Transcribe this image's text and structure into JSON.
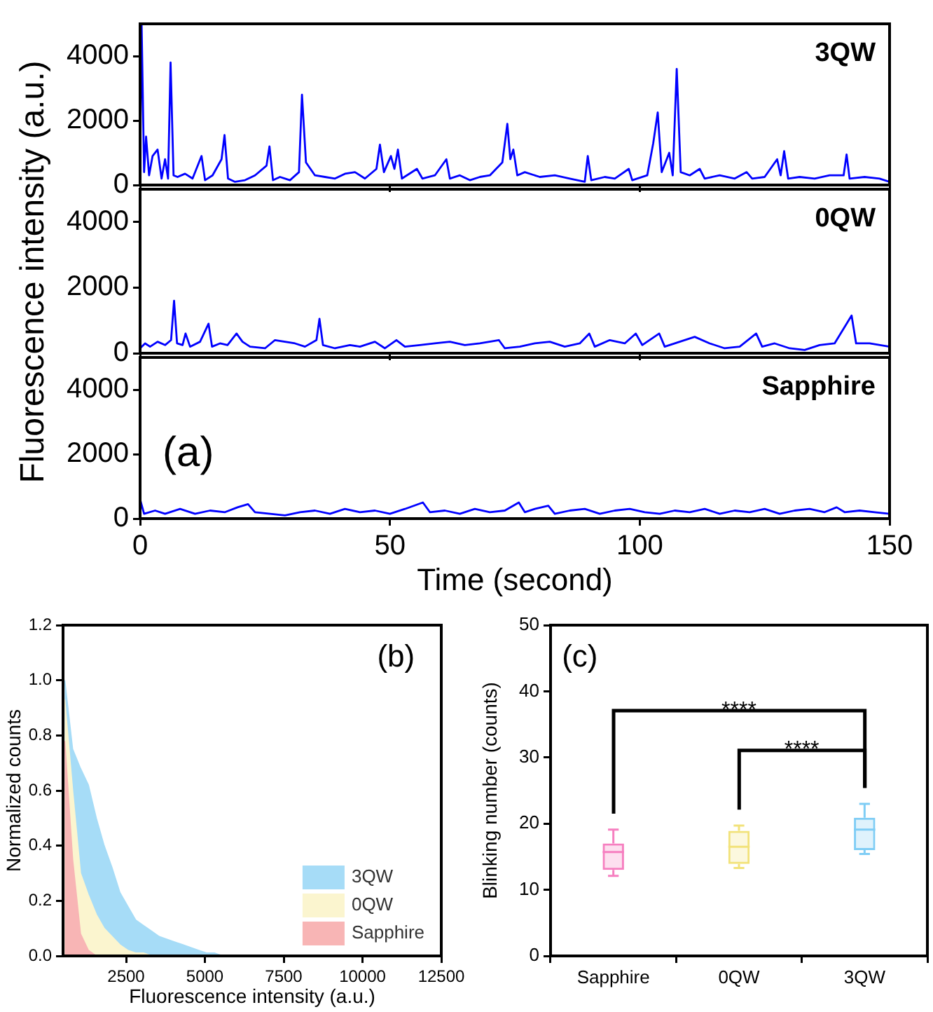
{
  "chart_data": [
    {
      "type": "line",
      "title": "3QW",
      "x": [
        0,
        0.3,
        0.8,
        1.2,
        1.8,
        2.5,
        3.5,
        4.3,
        5,
        5.6,
        6.1,
        6.7,
        7.5,
        9,
        10.5,
        12.3,
        13,
        14.5,
        16.3,
        16.9,
        17.6,
        19,
        21,
        23,
        25.3,
        25.9,
        26.6,
        28,
        30,
        31.8,
        32.4,
        33.2,
        35,
        37,
        39,
        41,
        43,
        45,
        47.3,
        48,
        48.8,
        50.2,
        50.9,
        51.6,
        52.4,
        55.4,
        56.5,
        59,
        61.3,
        62,
        64,
        66,
        68,
        70,
        72.5,
        73.5,
        74.1,
        74.7,
        75.5,
        77,
        80,
        83,
        86,
        89,
        89.6,
        90.3,
        93,
        95,
        97.8,
        98.5,
        101.5,
        102.7,
        103.6,
        104.4,
        105.9,
        106.6,
        107.4,
        108.2,
        110,
        112,
        113,
        116,
        119,
        121.4,
        122.5,
        125,
        127.5,
        128.2,
        128.9,
        129.7,
        132,
        135,
        138,
        140.8,
        141.4,
        142,
        145,
        148,
        150
      ],
      "series": [
        {
          "color": "#0000ff",
          "values": [
            300,
            5000,
            400,
            1500,
            300,
            900,
            1100,
            200,
            800,
            200,
            3800,
            300,
            250,
            350,
            200,
            900,
            150,
            300,
            800,
            1550,
            200,
            100,
            150,
            300,
            600,
            1200,
            150,
            250,
            150,
            400,
            2800,
            700,
            300,
            250,
            200,
            350,
            400,
            200,
            500,
            1250,
            400,
            900,
            500,
            1100,
            200,
            500,
            200,
            300,
            800,
            200,
            300,
            150,
            250,
            300,
            700,
            1900,
            800,
            1100,
            300,
            400,
            250,
            300,
            200,
            100,
            900,
            150,
            250,
            200,
            500,
            150,
            300,
            1300,
            2250,
            400,
            1000,
            300,
            3600,
            400,
            300,
            500,
            200,
            300,
            200,
            400,
            200,
            250,
            800,
            300,
            1050,
            200,
            250,
            200,
            300,
            300,
            950,
            200,
            250,
            200,
            100
          ]
        }
      ],
      "xlim": [
        0,
        150
      ],
      "xticks": [
        0,
        50,
        100,
        150
      ],
      "ylim": [
        0,
        5000
      ],
      "yticks": [
        0,
        2000,
        4000
      ],
      "tick_labels": "y"
    },
    {
      "type": "line",
      "title": "0QW",
      "ylabel": "Fluorescence intensity (a.u.)",
      "x": [
        0,
        1,
        2,
        3.5,
        5,
        6.2,
        6.8,
        7.4,
        8.5,
        9.1,
        10,
        12,
        13.7,
        14.4,
        16,
        17.5,
        19.3,
        20.5,
        22,
        25,
        27,
        29,
        31,
        33,
        35.3,
        35.9,
        36.6,
        39,
        42,
        44,
        47,
        49,
        51.3,
        53,
        56,
        59,
        62,
        65,
        68,
        71.8,
        73,
        76,
        79,
        82,
        85,
        88,
        89.9,
        91,
        94,
        97,
        99.2,
        100.5,
        103.9,
        105,
        108,
        111,
        114,
        117,
        120,
        123.3,
        124.5,
        127,
        130,
        133,
        136,
        139,
        142.4,
        143.3,
        146,
        150
      ],
      "series": [
        {
          "color": "#0000ff",
          "values": [
            150,
            300,
            200,
            350,
            250,
            400,
            1600,
            300,
            250,
            600,
            200,
            350,
            900,
            200,
            300,
            250,
            600,
            350,
            200,
            150,
            400,
            350,
            300,
            200,
            400,
            1050,
            250,
            150,
            250,
            200,
            350,
            150,
            400,
            200,
            250,
            300,
            350,
            250,
            300,
            400,
            150,
            200,
            300,
            350,
            200,
            300,
            600,
            200,
            400,
            300,
            600,
            250,
            600,
            200,
            350,
            500,
            300,
            150,
            200,
            600,
            200,
            300,
            150,
            100,
            250,
            300,
            1150,
            300,
            300,
            200
          ]
        }
      ],
      "xlim": [
        0,
        150
      ],
      "xticks": [
        0,
        50,
        100,
        150
      ],
      "ylim": [
        0,
        5000
      ],
      "yticks": [
        0,
        2000,
        4000
      ],
      "tick_labels": "y"
    },
    {
      "type": "line",
      "title": "Sapphire",
      "xlabel": "Time (second)",
      "annotations": [
        "(a)"
      ],
      "x": [
        0,
        0.8,
        3,
        5,
        8,
        11,
        14,
        17,
        19.5,
        21.6,
        23,
        26,
        29,
        32,
        35,
        38,
        41,
        44,
        47,
        50,
        53,
        56.6,
        58,
        61,
        64,
        67,
        70,
        73,
        75.8,
        77,
        79,
        81.7,
        83,
        86,
        89,
        92,
        95,
        98,
        101,
        104,
        107,
        110,
        113,
        116,
        119,
        122,
        125,
        128,
        131,
        134,
        137,
        139.4,
        141,
        144,
        147,
        150
      ],
      "series": [
        {
          "color": "#0000ff",
          "values": [
            600,
            150,
            250,
            150,
            300,
            150,
            250,
            200,
            350,
            450,
            200,
            150,
            100,
            200,
            250,
            150,
            300,
            200,
            250,
            150,
            300,
            500,
            200,
            250,
            150,
            300,
            200,
            250,
            500,
            200,
            300,
            400,
            150,
            250,
            300,
            150,
            250,
            300,
            200,
            150,
            250,
            200,
            300,
            150,
            250,
            200,
            300,
            150,
            250,
            300,
            200,
            350,
            200,
            250,
            200,
            150
          ]
        }
      ],
      "xlim": [
        0,
        150
      ],
      "xticks": [
        0,
        50,
        100,
        150
      ],
      "ylim": [
        0,
        5000
      ],
      "yticks": [
        0,
        2000,
        4000
      ]
    },
    {
      "type": "area",
      "xlabel": "Fluorescence intensity (a.u.)",
      "ylabel": "Normalized counts",
      "annotations": [
        "(b)"
      ],
      "legend": "bottom right",
      "x": [
        550,
        800,
        1050,
        1300,
        1550,
        1800,
        2050,
        2300,
        2550,
        2800,
        3050,
        3300,
        3550,
        3800,
        4050,
        4300,
        4550,
        4800,
        5050,
        5300,
        5550,
        5800
      ],
      "series": [
        {
          "name": "3QW",
          "color": "#a6dcf7",
          "values": [
            1.0,
            0.75,
            0.68,
            0.62,
            0.5,
            0.4,
            0.32,
            0.23,
            0.18,
            0.13,
            0.11,
            0.09,
            0.07,
            0.06,
            0.05,
            0.04,
            0.03,
            0.02,
            0.01,
            0.01,
            0,
            0
          ]
        },
        {
          "name": "0QW",
          "color": "#fbf5cf",
          "values": [
            0.93,
            0.6,
            0.3,
            0.22,
            0.15,
            0.1,
            0.07,
            0.04,
            0.02,
            0.01,
            0.01,
            0,
            0,
            0,
            0,
            0,
            0,
            0,
            0,
            0,
            0,
            0
          ]
        },
        {
          "name": "Sapphire",
          "color": "#f8b5b5",
          "values": [
            0.78,
            0.35,
            0.08,
            0.02,
            0,
            0,
            0,
            0,
            0,
            0,
            0,
            0,
            0,
            0,
            0,
            0,
            0,
            0,
            0,
            0,
            0,
            0
          ]
        }
      ],
      "xlim": [
        500,
        12500
      ],
      "xticks": [
        2500,
        5000,
        7500,
        10000,
        12500
      ],
      "ylim": [
        0,
        1.2
      ],
      "yticks": [
        {
          "value": 0,
          "label": "0.0"
        },
        {
          "value": 0.2,
          "label": "0.2"
        },
        {
          "value": 0.4,
          "label": "0.4"
        },
        {
          "value": 0.6,
          "label": "0.6"
        },
        {
          "value": 0.8,
          "label": "0.8"
        },
        {
          "value": 1,
          "label": "1.0"
        },
        {
          "value": 1.2,
          "label": "1.2"
        }
      ]
    },
    {
      "type": "box",
      "ylabel": "Blinking number (counts)",
      "annotations": [
        "(c)",
        "****",
        "****"
      ],
      "categories": [
        "Sapphire",
        "0QW",
        "3QW"
      ],
      "boxes": [
        {
          "low": 12.1,
          "q1": 13,
          "median": 15.7,
          "q3": 17,
          "high": 19.1
        },
        {
          "low": 13.3,
          "q1": 13.9,
          "median": 16.5,
          "q3": 18.9,
          "high": 19.7
        },
        {
          "low": 15.4,
          "q1": 16,
          "median": 19.1,
          "q3": 20.9,
          "high": 23
        }
      ],
      "colors": [
        "#f67fc0",
        "#f2e27a",
        "#7fcdf5"
      ],
      "ylim": [
        0,
        50
      ],
      "yticks": [
        0,
        10,
        20,
        30,
        40,
        50
      ]
    }
  ]
}
